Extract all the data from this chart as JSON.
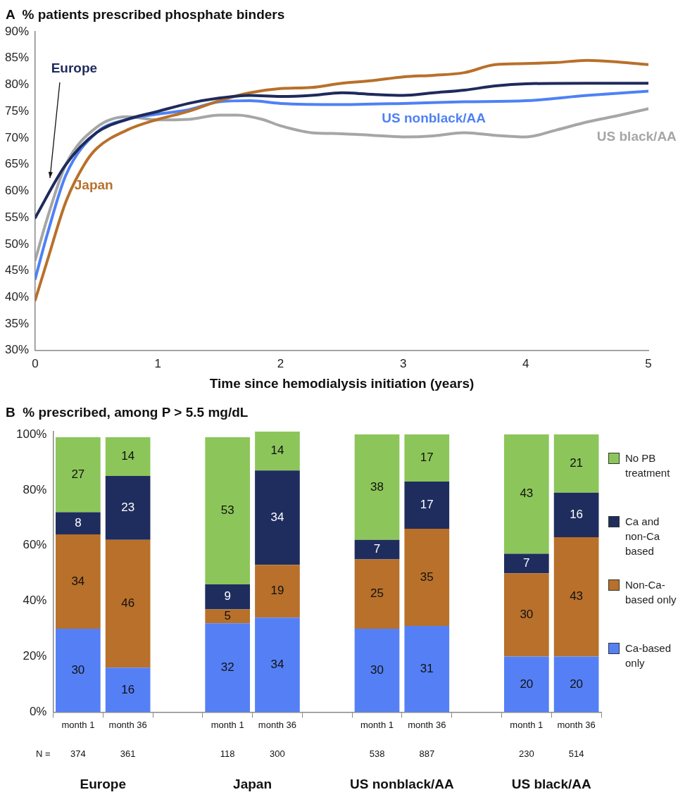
{
  "chart_data": [
    {
      "type": "line",
      "title": "A  % patients prescribed phosphate binders",
      "xlabel": "Time since hemodialysis initiation (years)",
      "xlim": [
        0,
        5
      ],
      "xticks": [
        0,
        1,
        2,
        3,
        4,
        5
      ],
      "ylim": [
        30,
        90
      ],
      "yticks": [
        {
          "value": 30,
          "label": "30%"
        },
        {
          "value": 35,
          "label": "35%"
        },
        {
          "value": 40,
          "label": "40%"
        },
        {
          "value": 45,
          "label": "45%"
        },
        {
          "value": 50,
          "label": "50%"
        },
        {
          "value": 55,
          "label": "55%"
        },
        {
          "value": 60,
          "label": "60%"
        },
        {
          "value": 65,
          "label": "65%"
        },
        {
          "value": 70,
          "label": "70%"
        },
        {
          "value": 75,
          "label": "75%"
        },
        {
          "value": 80,
          "label": "80%"
        },
        {
          "value": 85,
          "label": "85%"
        },
        {
          "value": 90,
          "label": "90%"
        }
      ],
      "grid": false,
      "legend": false,
      "marker": "none",
      "line_style": "solid",
      "series": [
        {
          "name": "Europe",
          "color": "#1f2a5c",
          "x": [
            0,
            0.25,
            0.5,
            0.75,
            1,
            1.25,
            1.5,
            1.75,
            2,
            2.25,
            2.5,
            2.75,
            3,
            3.25,
            3.5,
            3.75,
            4,
            4.5,
            5
          ],
          "values": [
            55,
            65,
            71,
            73.5,
            75,
            76.5,
            77.5,
            78,
            77.8,
            78,
            78.5,
            78.2,
            78,
            78.5,
            79,
            79.8,
            80.2,
            80.3,
            80.3
          ]
        },
        {
          "name": "Japan",
          "color": "#b8702a",
          "x": [
            0,
            0.1,
            0.25,
            0.4,
            0.5,
            0.75,
            1,
            1.25,
            1.5,
            1.75,
            2,
            2.25,
            2.5,
            2.75,
            3,
            3.25,
            3.5,
            3.75,
            4,
            4.25,
            4.5,
            4.75,
            5
          ],
          "values": [
            39.5,
            47,
            58,
            65,
            68,
            71.5,
            73.5,
            75,
            77,
            78.5,
            79.3,
            79.5,
            80.3,
            80.8,
            81.5,
            81.8,
            82.3,
            83.8,
            84,
            84.2,
            84.6,
            84.3,
            83.8
          ]
        },
        {
          "name": "US nonblack/AA",
          "color": "#4f81f5",
          "x": [
            0,
            0.1,
            0.25,
            0.5,
            0.75,
            1,
            1.25,
            1.5,
            1.75,
            2,
            2.5,
            3,
            3.5,
            4,
            4.5,
            5
          ],
          "values": [
            43.5,
            52,
            63,
            71,
            73.5,
            74.5,
            75.3,
            76.8,
            77,
            76.5,
            76.3,
            76.5,
            76.8,
            77,
            78,
            78.8
          ]
        },
        {
          "name": "US black/AA",
          "color": "#a6a6a6",
          "x": [
            0,
            0.1,
            0.25,
            0.5,
            0.75,
            1,
            1.25,
            1.5,
            1.65,
            1.85,
            2,
            2.25,
            2.5,
            2.75,
            3,
            3.25,
            3.5,
            3.75,
            4,
            4.25,
            4.5,
            4.75,
            5
          ],
          "values": [
            47,
            55,
            65,
            72,
            74,
            73.4,
            73.5,
            74.3,
            74.3,
            73.5,
            72.3,
            71,
            70.8,
            70.5,
            70.2,
            70.4,
            71,
            70.5,
            70.2,
            71.5,
            73,
            74.2,
            75.5
          ]
        }
      ]
    },
    {
      "type": "bar",
      "stacked": true,
      "title": "B  % prescribed, among P > 5.5 mg/dL",
      "categories": [
        "month 1",
        "month 36",
        null,
        "month 1",
        "month 36",
        null,
        "month 1",
        "month 36",
        null,
        "month 1",
        "month 36"
      ],
      "ylim": [
        0,
        101
      ],
      "yticks": [
        {
          "value": 0,
          "label": "0%"
        },
        {
          "value": 20,
          "label": "20%"
        },
        {
          "value": 40,
          "label": "40%"
        },
        {
          "value": 60,
          "label": "60%"
        },
        {
          "value": 80,
          "label": "80%"
        },
        {
          "value": 100,
          "label": "100%"
        }
      ],
      "grid": false,
      "legend": "right",
      "data_labels": true,
      "annotations": [
        "N =",
        "374",
        "361",
        "118",
        "300",
        "538",
        "887",
        "230",
        "514",
        "Europe",
        "Japan",
        "US nonblack/AA",
        "US black/AA"
      ],
      "series": [
        {
          "name": "Ca-based only",
          "color": "#5580f5",
          "values": [
            30,
            16,
            null,
            32,
            34,
            null,
            30,
            31,
            null,
            20,
            20
          ]
        },
        {
          "name": "Non-Ca-based only",
          "color": "#b8702a",
          "values": [
            34,
            46,
            null,
            5,
            19,
            null,
            25,
            35,
            null,
            30,
            43
          ]
        },
        {
          "name": "Ca and non-Ca based",
          "color": "#1f2d5e",
          "values": [
            8,
            23,
            null,
            9,
            34,
            null,
            7,
            17,
            null,
            7,
            16
          ]
        },
        {
          "name": "No PB treatment",
          "color": "#8cc65a",
          "values": [
            27,
            14,
            null,
            53,
            14,
            null,
            38,
            17,
            null,
            43,
            21
          ]
        }
      ]
    }
  ]
}
